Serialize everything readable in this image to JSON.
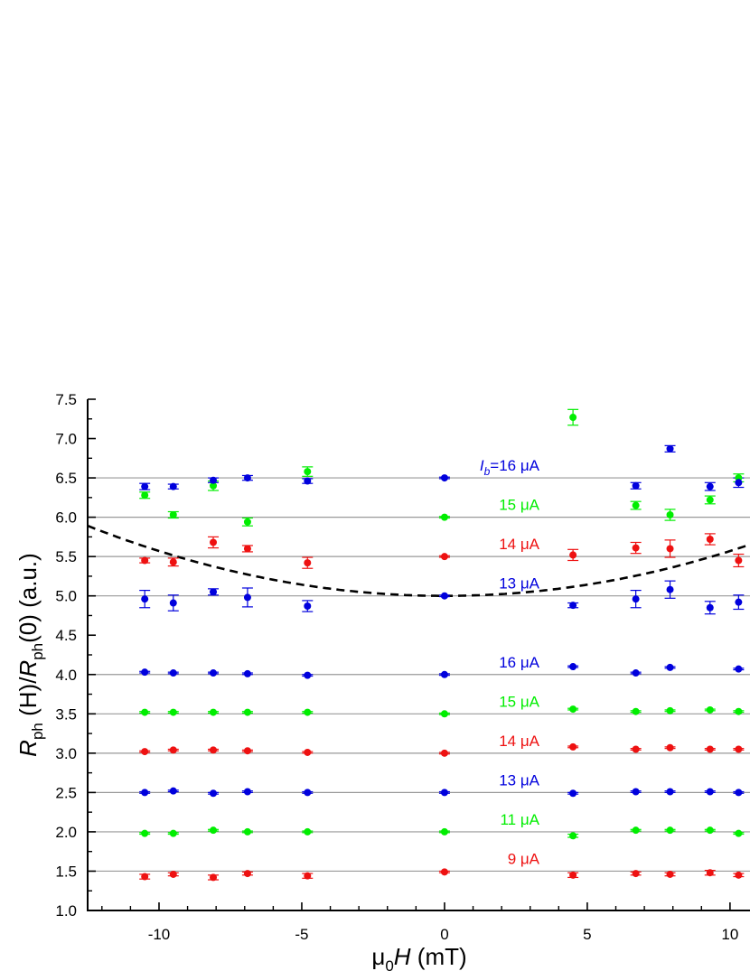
{
  "chart_data": {
    "type": "scatter",
    "xlabel": {
      "mu": "μ",
      "sub": "0",
      "var": "H",
      "unit": " (mT)"
    },
    "ylabel": {
      "R1": "R",
      "sub1": "ph",
      "mid": " (H)/",
      "R2": "R",
      "sub2": "ph",
      "tail": "(0) (a.u.)"
    },
    "xlim": [
      -12.5,
      10.7
    ],
    "ylim": [
      1.0,
      7.5
    ],
    "xticks": [
      -10,
      -5,
      0,
      5,
      10
    ],
    "xtick_labels": [
      "-10",
      "-5",
      "0",
      "5",
      "10"
    ],
    "yticks": [
      1.0,
      1.5,
      2.0,
      2.5,
      3.0,
      3.5,
      4.0,
      4.5,
      5.0,
      5.5,
      6.0,
      6.5,
      7.0,
      7.5
    ],
    "ytick_labels": [
      "1.0",
      "1.5",
      "2.0",
      "2.5",
      "3.0",
      "3.5",
      "4.0",
      "4.5",
      "5.0",
      "5.5",
      "6.0",
      "6.5",
      "7.0",
      "7.5"
    ],
    "reference_lines": [
      1.5,
      2.0,
      2.5,
      3.0,
      3.5,
      4.0,
      5.0,
      5.5,
      6.0,
      6.5
    ],
    "colors": {
      "blue": "#0000dd",
      "green": "#00ee00",
      "red": "#ee1111",
      "line": "#999999",
      "dash": "#000000"
    },
    "x": [
      -10.5,
      -9.5,
      -8.1,
      -6.9,
      -4.8,
      0,
      4.5,
      6.7,
      7.9,
      9.3,
      10.3
    ],
    "series": [
      {
        "label": "9 μA",
        "color": "red",
        "offset": 1.5,
        "y": [
          1.43,
          1.46,
          1.42,
          1.47,
          1.44,
          1.49,
          1.45,
          1.47,
          1.46,
          1.48,
          1.45
        ],
        "err": [
          0.03,
          0.02,
          0.03,
          0.02,
          0.03,
          0.01,
          0.03,
          0.02,
          0.02,
          0.03,
          0.02
        ]
      },
      {
        "label": "11 μA",
        "color": "green",
        "offset": 2.0,
        "y": [
          1.98,
          1.98,
          2.02,
          2.0,
          2.0,
          2.0,
          1.95,
          2.02,
          2.02,
          2.02,
          1.98
        ],
        "err": [
          0.01,
          0.01,
          0.01,
          0.01,
          0.01,
          0.01,
          0.02,
          0.01,
          0.01,
          0.01,
          0.01
        ]
      },
      {
        "label": "13 μA",
        "color": "blue",
        "offset": 2.5,
        "y": [
          2.5,
          2.52,
          2.49,
          2.51,
          2.5,
          2.5,
          2.49,
          2.51,
          2.51,
          2.51,
          2.5
        ],
        "err": [
          0.01,
          0.01,
          0.01,
          0.01,
          0.01,
          0.01,
          0.01,
          0.01,
          0.01,
          0.01,
          0.01
        ]
      },
      {
        "label": "14 μA",
        "color": "red",
        "offset": 3.0,
        "y": [
          3.02,
          3.04,
          3.04,
          3.03,
          3.01,
          3.0,
          3.08,
          3.05,
          3.07,
          3.05,
          3.05
        ],
        "err": [
          0.01,
          0.01,
          0.01,
          0.01,
          0.01,
          0.01,
          0.01,
          0.01,
          0.01,
          0.01,
          0.01
        ]
      },
      {
        "label": "15 μA",
        "color": "green",
        "offset": 3.5,
        "y": [
          3.52,
          3.52,
          3.52,
          3.52,
          3.52,
          3.5,
          3.56,
          3.53,
          3.54,
          3.55,
          3.53
        ],
        "err": [
          0.01,
          0.01,
          0.01,
          0.01,
          0.01,
          0.01,
          0.01,
          0.01,
          0.01,
          0.01,
          0.01
        ]
      },
      {
        "label": "16 μA",
        "color": "blue",
        "offset": 4.0,
        "y": [
          4.03,
          4.02,
          4.02,
          4.01,
          3.99,
          4.0,
          4.1,
          4.02,
          4.09,
          null,
          4.07
        ],
        "err": [
          0.01,
          0.01,
          0.01,
          0.01,
          0.01,
          0.01,
          0.01,
          0.01,
          0.01,
          null,
          0.01
        ]
      },
      {
        "label": "13 μA",
        "color": "blue",
        "offset": 5.0,
        "y": [
          4.96,
          4.91,
          5.05,
          4.98,
          4.87,
          5.0,
          4.88,
          4.96,
          5.08,
          4.85,
          4.92
        ],
        "err": [
          0.11,
          0.1,
          0.04,
          0.12,
          0.07,
          0.01,
          0.03,
          0.11,
          0.11,
          0.08,
          0.09
        ]
      },
      {
        "label": "14 μA",
        "color": "red",
        "offset": 5.5,
        "y": [
          5.45,
          5.43,
          5.68,
          5.6,
          5.42,
          5.5,
          5.52,
          5.61,
          5.6,
          5.72,
          5.45
        ],
        "err": [
          0.03,
          0.05,
          0.07,
          0.04,
          0.07,
          0.01,
          0.07,
          0.07,
          0.11,
          0.07,
          0.08
        ]
      },
      {
        "label": "15 μA",
        "color": "green",
        "offset": 6.0,
        "y": [
          6.28,
          6.03,
          6.4,
          5.94,
          6.58,
          6.0,
          7.27,
          6.15,
          6.03,
          6.22,
          6.5
        ],
        "err": [
          0.04,
          0.04,
          0.06,
          0.05,
          0.06,
          0.01,
          0.1,
          0.05,
          0.07,
          0.05,
          0.05
        ]
      },
      {
        "label": "=16 μA",
        "italic_prefix": "I",
        "italic_sub": "b",
        "color": "blue",
        "offset": 6.5,
        "y": [
          6.39,
          6.39,
          6.47,
          6.5,
          6.46,
          6.5,
          null,
          6.4,
          6.87,
          6.39,
          6.44
        ],
        "err": [
          0.04,
          0.03,
          0.03,
          0.03,
          0.03,
          0.01,
          null,
          0.04,
          0.04,
          0.05,
          0.06
        ]
      }
    ],
    "fit_curve": {
      "style": "dashed",
      "vertex_x": 0,
      "vertex_y": 5.0,
      "a": 0.0057
    }
  }
}
